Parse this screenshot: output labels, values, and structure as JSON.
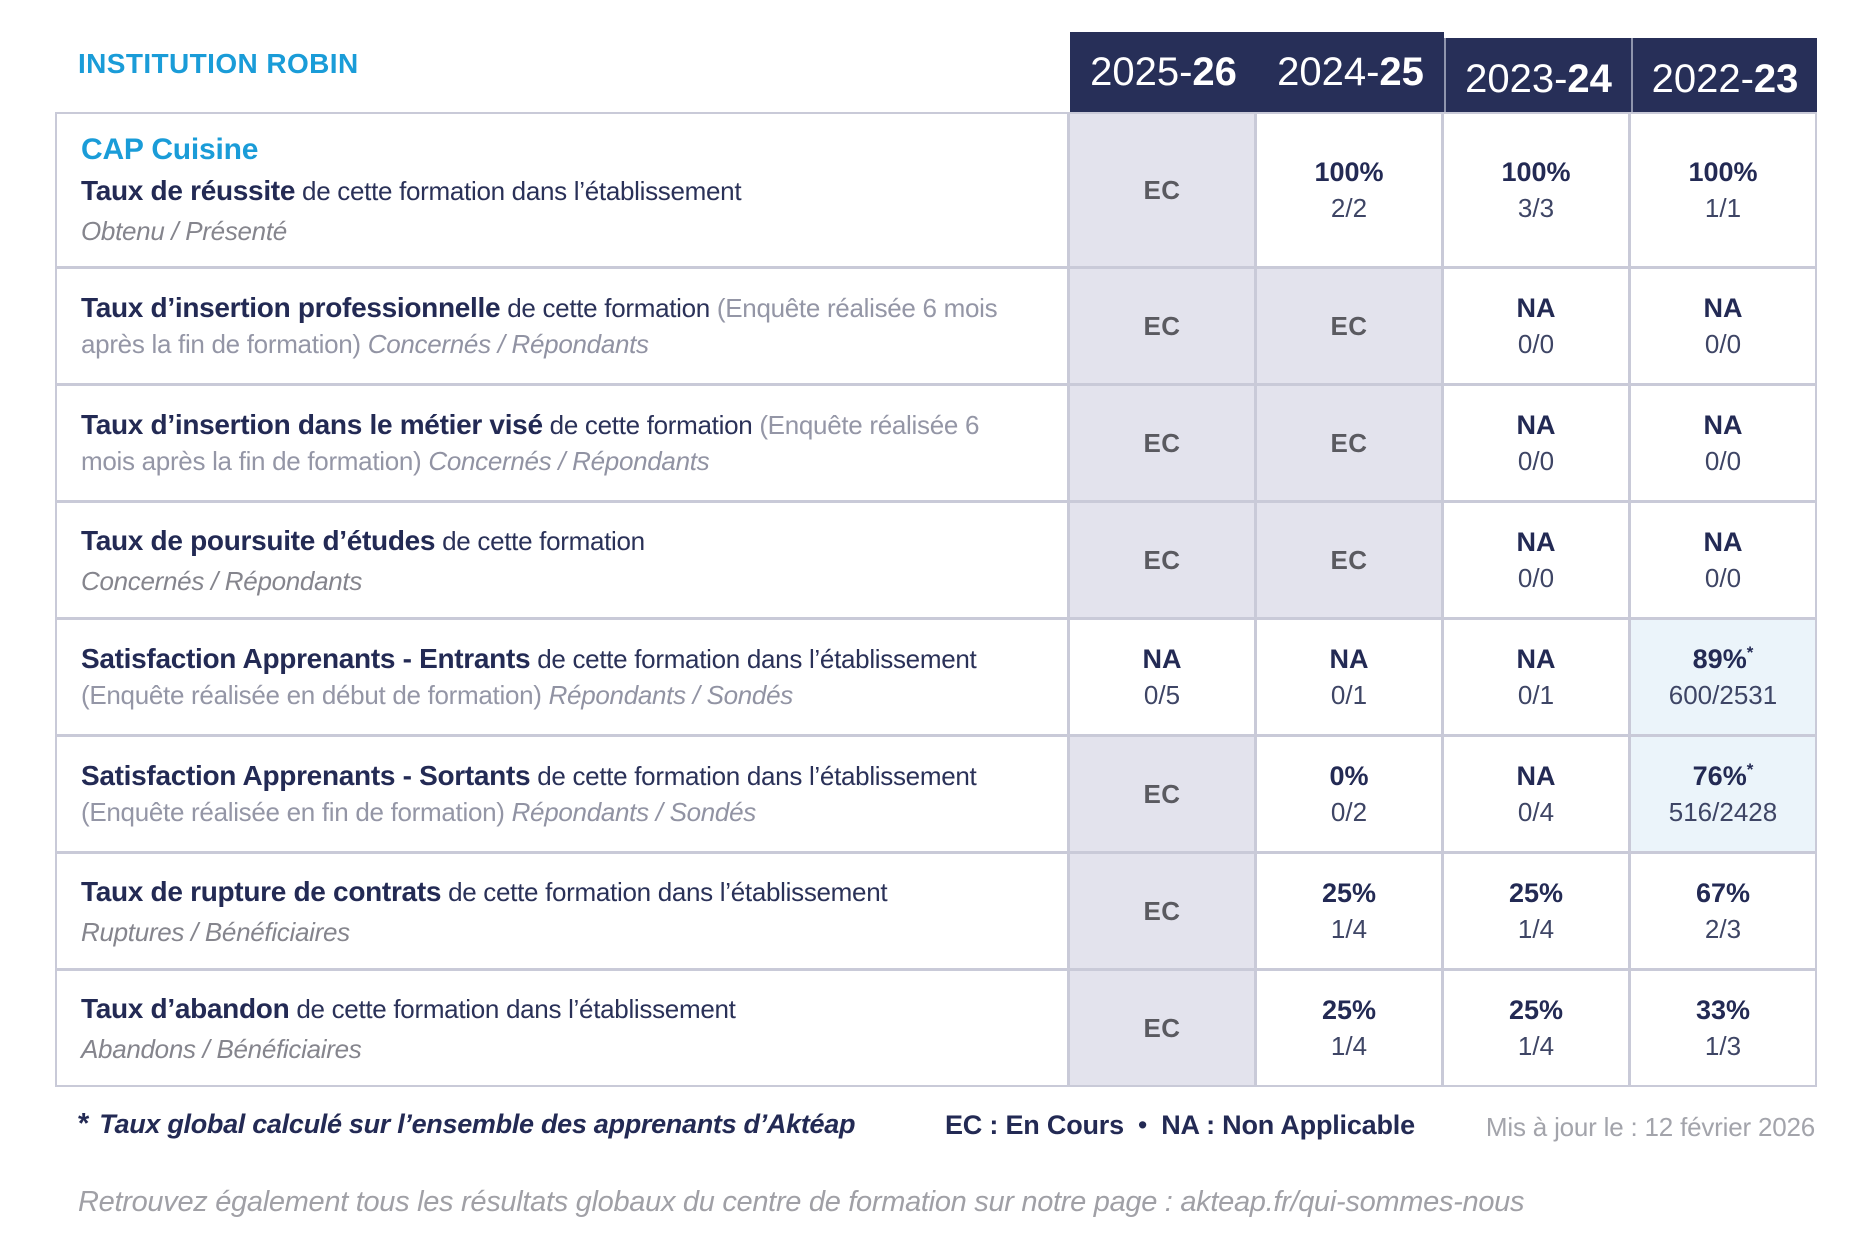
{
  "brand": "INSTITUTION ROBIN",
  "years": [
    {
      "prefix": "2025-",
      "bold": "26"
    },
    {
      "prefix": "2024-",
      "bold": "25"
    },
    {
      "prefix": "2023-",
      "bold": "24"
    },
    {
      "prefix": "2022-",
      "bold": "23"
    }
  ],
  "rows": [
    {
      "title": "CAP Cuisine",
      "bold": "Taux de réussite",
      "regular": "de cette formation dans l’établissement",
      "note": "",
      "sub_inline": "",
      "sub_line": "Obtenu / Présenté",
      "cells": [
        {
          "main": "EC",
          "frac": "",
          "kind": "ec"
        },
        {
          "main": "100%",
          "frac": "2/2",
          "kind": "pct"
        },
        {
          "main": "100%",
          "frac": "3/3",
          "kind": "pct"
        },
        {
          "main": "100%",
          "frac": "1/1",
          "kind": "pct"
        }
      ]
    },
    {
      "title": "",
      "bold": "Taux d’insertion professionnelle",
      "regular": "de cette formation",
      "note": "(Enquête réalisée 6 mois après la fin de formation)",
      "sub_inline": "Concernés / Répondants",
      "sub_line": "",
      "cells": [
        {
          "main": "EC",
          "frac": "",
          "kind": "ec"
        },
        {
          "main": "EC",
          "frac": "",
          "kind": "ec"
        },
        {
          "main": "NA",
          "frac": "0/0",
          "kind": "na"
        },
        {
          "main": "NA",
          "frac": "0/0",
          "kind": "na"
        }
      ]
    },
    {
      "title": "",
      "bold": "Taux d’insertion dans le métier visé",
      "regular": "de cette formation",
      "note": "(Enquête réalisée 6 mois après la fin de formation)",
      "sub_inline": "Concernés / Répondants",
      "sub_line": "",
      "cells": [
        {
          "main": "EC",
          "frac": "",
          "kind": "ec"
        },
        {
          "main": "EC",
          "frac": "",
          "kind": "ec"
        },
        {
          "main": "NA",
          "frac": "0/0",
          "kind": "na"
        },
        {
          "main": "NA",
          "frac": "0/0",
          "kind": "na"
        }
      ]
    },
    {
      "title": "",
      "bold": "Taux de poursuite d’études",
      "regular": "de cette formation",
      "note": "",
      "sub_inline": "",
      "sub_line": "Concernés / Répondants",
      "cells": [
        {
          "main": "EC",
          "frac": "",
          "kind": "ec"
        },
        {
          "main": "EC",
          "frac": "",
          "kind": "ec"
        },
        {
          "main": "NA",
          "frac": "0/0",
          "kind": "na"
        },
        {
          "main": "NA",
          "frac": "0/0",
          "kind": "na"
        }
      ]
    },
    {
      "title": "",
      "bold": "Satisfaction Apprenants - Entrants",
      "regular": "de cette formation dans l’établissement",
      "note": "(Enquête réalisée en début de formation)",
      "sub_inline": "Répondants / Sondés",
      "sub_line": "",
      "cells": [
        {
          "main": "NA",
          "frac": "0/5",
          "kind": "na"
        },
        {
          "main": "NA",
          "frac": "0/1",
          "kind": "na"
        },
        {
          "main": "NA",
          "frac": "0/1",
          "kind": "na"
        },
        {
          "main": "89%",
          "sup": "*",
          "frac": "600/2531",
          "kind": "star"
        }
      ]
    },
    {
      "title": "",
      "bold": "Satisfaction Apprenants - Sortants",
      "regular": "de cette formation dans l’établissement",
      "note": "(Enquête réalisée en fin de formation)",
      "sub_inline": "Répondants / Sondés",
      "sub_line": "",
      "cells": [
        {
          "main": "EC",
          "frac": "",
          "kind": "ec"
        },
        {
          "main": "0%",
          "frac": "0/2",
          "kind": "pct"
        },
        {
          "main": "NA",
          "frac": "0/4",
          "kind": "na"
        },
        {
          "main": "76%",
          "sup": "*",
          "frac": "516/2428",
          "kind": "star"
        }
      ]
    },
    {
      "title": "",
      "bold": "Taux de rupture de contrats",
      "regular": "de cette formation dans l’établissement",
      "note": "",
      "sub_inline": "",
      "sub_line": "Ruptures / Bénéficiaires",
      "cells": [
        {
          "main": "EC",
          "frac": "",
          "kind": "ec"
        },
        {
          "main": "25%",
          "frac": "1/4",
          "kind": "pct"
        },
        {
          "main": "25%",
          "frac": "1/4",
          "kind": "pct"
        },
        {
          "main": "67%",
          "frac": "2/3",
          "kind": "pct"
        }
      ]
    },
    {
      "title": "",
      "bold": "Taux d’abandon",
      "regular": "de cette formation dans l’établissement",
      "note": "",
      "sub_inline": "",
      "sub_line": "Abandons / Bénéficiaires",
      "cells": [
        {
          "main": "EC",
          "frac": "",
          "kind": "ec"
        },
        {
          "main": "25%",
          "frac": "1/4",
          "kind": "pct"
        },
        {
          "main": "25%",
          "frac": "1/4",
          "kind": "pct"
        },
        {
          "main": "33%",
          "frac": "1/3",
          "kind": "pct"
        }
      ]
    }
  ],
  "footer": {
    "star": "*",
    "star_note": "Taux global calculé sur l’ensemble des apprenants d’Aktéap",
    "legend_ec": "EC : En Cours",
    "legend_sep": "•",
    "legend_na": "NA : Non Applicable",
    "updated": "Mis à jour le : 12 février 2026"
  },
  "bottom_note": "Retrouvez également tous les résultats globaux du centre de formation sur notre page : akteap.fr/qui-sommes-nous",
  "colors": {
    "accent_blue": "#1a9cd8",
    "header_navy": "#272f58",
    "text_navy": "#232a54",
    "ec_cell_bg": "#e3e3ed",
    "star_cell_bg": "#ebf4fa",
    "grid_line": "#c9cad8"
  }
}
